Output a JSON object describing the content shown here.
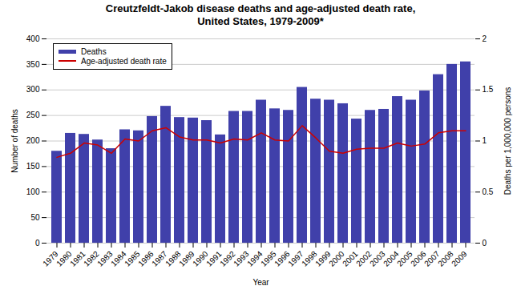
{
  "chart_data": {
    "type": "bar",
    "title": "Creutzfeldt-Jakob disease deaths and age-adjusted death rate,\nUnited States, 1979-2009*",
    "xlabel": "Year",
    "ylabel": "Number of deaths",
    "y2label": "Deaths per 1,000,000 persons",
    "categories": [
      "1979",
      "1980",
      "1981",
      "1982",
      "1983",
      "1984",
      "1985",
      "1986",
      "1987",
      "1988",
      "1989",
      "1990",
      "1991",
      "1992",
      "1993",
      "1994",
      "1995",
      "1996",
      "1997",
      "1998",
      "1999",
      "2000",
      "2001",
      "2002",
      "2003",
      "2004",
      "2005",
      "2006",
      "2007",
      "2008",
      "2009"
    ],
    "series": [
      {
        "name": "Deaths",
        "type": "bar",
        "color": "#4040aa",
        "values": [
          180,
          215,
          213,
          202,
          185,
          222,
          220,
          248,
          268,
          246,
          245,
          240,
          212,
          258,
          258,
          280,
          263,
          260,
          305,
          282,
          280,
          273,
          243,
          260,
          262,
          287,
          280,
          298,
          330,
          350,
          355
        ]
      },
      {
        "name": "Age-adjusted death rate",
        "type": "line",
        "color": "#cc0000",
        "axis": "y2",
        "values": [
          0.84,
          0.88,
          0.98,
          0.96,
          0.88,
          1.02,
          1.0,
          1.1,
          1.13,
          1.04,
          1.01,
          1.01,
          0.98,
          1.02,
          1.01,
          1.08,
          1.01,
          1.0,
          1.15,
          1.03,
          0.9,
          0.88,
          0.92,
          0.93,
          0.93,
          0.98,
          0.95,
          0.97,
          1.08,
          1.1,
          1.1
        ]
      }
    ],
    "ylim": [
      0,
      400
    ],
    "yticks": [
      0,
      50,
      100,
      150,
      200,
      250,
      300,
      350,
      400
    ],
    "y2lim": [
      0,
      2
    ],
    "y2ticks": [
      0,
      0.5,
      1,
      1.5,
      2
    ],
    "grid": true,
    "legend": "upper left"
  }
}
